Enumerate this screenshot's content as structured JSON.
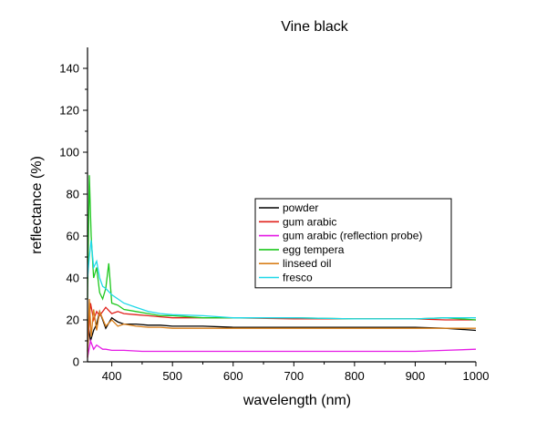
{
  "chart_data": {
    "type": "line",
    "title": "Vine black",
    "xlabel": "wavelength (nm)",
    "ylabel": "reflectance (%)",
    "xlim": [
      360,
      1000
    ],
    "ylim": [
      0,
      150
    ],
    "xticks": [
      400,
      500,
      600,
      700,
      800,
      900,
      1000
    ],
    "yticks": [
      0,
      20,
      40,
      60,
      80,
      100,
      120,
      140
    ],
    "grid": false,
    "legend_position": "center-right",
    "series": [
      {
        "name": "powder",
        "color": "#000000",
        "x": [
          360,
          365,
          370,
          375,
          380,
          390,
          400,
          410,
          420,
          440,
          460,
          480,
          500,
          550,
          600,
          700,
          800,
          900,
          950,
          1000
        ],
        "y": [
          20,
          10,
          15,
          18,
          24,
          16,
          21,
          19,
          18,
          18,
          17.5,
          17.5,
          17,
          17,
          16.5,
          16.5,
          16.5,
          16.5,
          16,
          15
        ]
      },
      {
        "name": "gum arabic",
        "color": "#e0201b",
        "x": [
          360,
          365,
          370,
          375,
          380,
          390,
          400,
          410,
          420,
          440,
          460,
          480,
          500,
          550,
          600,
          700,
          800,
          900,
          950,
          1000
        ],
        "y": [
          5,
          28,
          20,
          24,
          22,
          26,
          23,
          24,
          23,
          22.5,
          22,
          21.5,
          21,
          21,
          21,
          20.5,
          20.5,
          20.5,
          20,
          20
        ]
      },
      {
        "name": "gum arabic (reflection probe)",
        "color": "#e51be5",
        "x": [
          360,
          365,
          370,
          375,
          380,
          385,
          390,
          400,
          420,
          450,
          500,
          600,
          700,
          800,
          900,
          950,
          1000
        ],
        "y": [
          2,
          10,
          6,
          8,
          7,
          6,
          6,
          5.5,
          5.5,
          5,
          5,
          5,
          5,
          5,
          5,
          5.5,
          6
        ]
      },
      {
        "name": "egg tempera",
        "color": "#1ec81e",
        "x": [
          360,
          363,
          366,
          370,
          375,
          380,
          385,
          390,
          395,
          400,
          410,
          420,
          440,
          460,
          480,
          500,
          550,
          600,
          700,
          800,
          900,
          950,
          1000
        ],
        "y": [
          30,
          89,
          60,
          40,
          45,
          33,
          30,
          35,
          47,
          28,
          27,
          25,
          24,
          23,
          22,
          22,
          21,
          21,
          21,
          20.5,
          20.5,
          21,
          20
        ]
      },
      {
        "name": "linseed oil",
        "color": "#d87f1a",
        "x": [
          360,
          363,
          366,
          370,
          375,
          380,
          390,
          400,
          410,
          420,
          440,
          460,
          480,
          500,
          550,
          600,
          700,
          800,
          900,
          950,
          1000
        ],
        "y": [
          2,
          30,
          12,
          25,
          15,
          24,
          17,
          20,
          17,
          18,
          17,
          16.5,
          16.5,
          16,
          16,
          16,
          16,
          16,
          16,
          16,
          16
        ]
      },
      {
        "name": "fresco",
        "color": "#1fd8e8",
        "x": [
          360,
          363,
          366,
          370,
          375,
          380,
          385,
          390,
          400,
          410,
          420,
          440,
          460,
          480,
          500,
          550,
          600,
          700,
          800,
          900,
          950,
          1000
        ],
        "y": [
          40,
          50,
          58,
          45,
          48,
          40,
          36,
          35,
          32,
          30,
          28,
          26,
          24,
          23,
          22.5,
          22,
          21,
          21,
          20.5,
          20.5,
          21,
          21
        ]
      }
    ]
  }
}
